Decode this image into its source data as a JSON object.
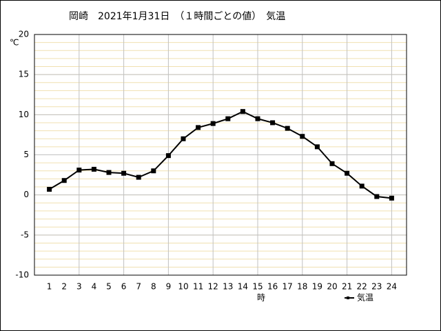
{
  "chart_data": {
    "type": "line",
    "title": "岡崎　2021年1月31日　（１時間ごとの値）　気温",
    "y_label": "℃",
    "x_label": "時",
    "x": [
      1,
      2,
      3,
      4,
      5,
      6,
      7,
      8,
      9,
      10,
      11,
      12,
      13,
      14,
      15,
      16,
      17,
      18,
      19,
      20,
      21,
      22,
      23,
      24
    ],
    "series": [
      {
        "name": "気温",
        "color": "#000000",
        "values": [
          0.7,
          1.8,
          3.1,
          3.2,
          2.8,
          2.7,
          2.2,
          3.0,
          4.9,
          7.0,
          8.4,
          8.9,
          9.5,
          10.4,
          9.5,
          9.0,
          8.3,
          7.3,
          6.0,
          3.9,
          2.7,
          1.1,
          -0.2,
          -0.4
        ]
      }
    ],
    "xlim": [
      0,
      25
    ],
    "xticks": [
      1,
      2,
      3,
      4,
      5,
      6,
      7,
      8,
      9,
      10,
      11,
      12,
      13,
      14,
      15,
      16,
      17,
      18,
      19,
      20,
      21,
      22,
      23,
      24
    ],
    "ylim": [
      -10,
      20
    ],
    "yticks": [
      -10,
      -5,
      0,
      5,
      10,
      15,
      20
    ],
    "grid": true,
    "legend": "bottom-right"
  }
}
